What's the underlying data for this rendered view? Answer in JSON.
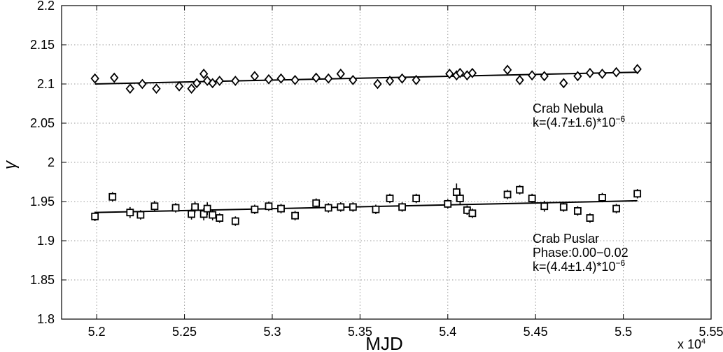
{
  "chart_data": {
    "type": "scatter",
    "xlabel": "MJD",
    "ylabel": "γ",
    "x_multiplier_label": "x 10",
    "x_multiplier_exp": "4",
    "xlim": [
      5.18,
      5.55
    ],
    "ylim": [
      1.8,
      2.2
    ],
    "x_ticks": [
      "5.2",
      "5.25",
      "5.3",
      "5.35",
      "5.4",
      "5.45",
      "5.5",
      "5.55"
    ],
    "y_ticks": [
      "1.8",
      "1.85",
      "1.9",
      "1.95",
      "2",
      "2.05",
      "2.1",
      "2.15",
      "2.2"
    ],
    "grid": true,
    "series": [
      {
        "name": "Crab Nebula",
        "marker": "diamond",
        "x": [
          5.199,
          5.21,
          5.219,
          5.226,
          5.234,
          5.247,
          5.254,
          5.257,
          5.261,
          5.263,
          5.266,
          5.27,
          5.279,
          5.29,
          5.298,
          5.305,
          5.313,
          5.325,
          5.332,
          5.339,
          5.346,
          5.36,
          5.367,
          5.374,
          5.382,
          5.401,
          5.405,
          5.407,
          5.411,
          5.414,
          5.434,
          5.441,
          5.448,
          5.455,
          5.466,
          5.474,
          5.481,
          5.488,
          5.496,
          5.508
        ],
        "y": [
          2.107,
          2.108,
          2.094,
          2.1,
          2.094,
          2.097,
          2.094,
          2.101,
          2.113,
          2.104,
          2.101,
          2.104,
          2.104,
          2.11,
          2.106,
          2.107,
          2.105,
          2.108,
          2.107,
          2.113,
          2.105,
          2.1,
          2.104,
          2.107,
          2.105,
          2.113,
          2.111,
          2.114,
          2.111,
          2.114,
          2.118,
          2.105,
          2.111,
          2.11,
          2.101,
          2.11,
          2.114,
          2.113,
          2.115,
          2.119
        ],
        "err": [
          0.004,
          0.004,
          0.004,
          0.004,
          0.004,
          0.004,
          0.004,
          0.004,
          0.005,
          0.004,
          0.004,
          0.004,
          0.004,
          0.004,
          0.004,
          0.004,
          0.004,
          0.004,
          0.004,
          0.004,
          0.004,
          0.004,
          0.004,
          0.004,
          0.004,
          0.004,
          0.004,
          0.004,
          0.004,
          0.004,
          0.004,
          0.004,
          0.004,
          0.004,
          0.004,
          0.004,
          0.004,
          0.004,
          0.004,
          0.004
        ],
        "fit": {
          "x": [
            5.199,
            5.508
          ],
          "y": [
            2.1,
            2.115
          ]
        },
        "annotation": {
          "lines": [
            "Crab Nebula",
            "k=(4.7±1.6)*10"
          ],
          "exponent": "−6"
        }
      },
      {
        "name": "Crab Puslar",
        "marker": "square",
        "x": [
          5.199,
          5.209,
          5.219,
          5.225,
          5.233,
          5.245,
          5.254,
          5.256,
          5.261,
          5.263,
          5.266,
          5.27,
          5.279,
          5.29,
          5.298,
          5.305,
          5.313,
          5.325,
          5.332,
          5.339,
          5.346,
          5.359,
          5.367,
          5.374,
          5.382,
          5.4,
          5.405,
          5.407,
          5.411,
          5.414,
          5.434,
          5.441,
          5.448,
          5.455,
          5.466,
          5.474,
          5.481,
          5.488,
          5.496,
          5.508
        ],
        "y": [
          1.931,
          1.956,
          1.936,
          1.933,
          1.944,
          1.942,
          1.934,
          1.943,
          1.934,
          1.941,
          1.933,
          1.929,
          1.925,
          1.94,
          1.944,
          1.941,
          1.932,
          1.948,
          1.942,
          1.943,
          1.943,
          1.94,
          1.954,
          1.943,
          1.954,
          1.947,
          1.962,
          1.954,
          1.939,
          1.935,
          1.959,
          1.965,
          1.954,
          1.944,
          1.943,
          1.938,
          1.929,
          1.955,
          1.941,
          1.96
        ],
        "err": [
          0.006,
          0.006,
          0.007,
          0.006,
          0.007,
          0.006,
          0.007,
          0.007,
          0.008,
          0.008,
          0.007,
          0.006,
          0.006,
          0.006,
          0.006,
          0.006,
          0.006,
          0.006,
          0.006,
          0.006,
          0.006,
          0.006,
          0.006,
          0.006,
          0.006,
          0.006,
          0.011,
          0.008,
          0.006,
          0.006,
          0.006,
          0.006,
          0.006,
          0.007,
          0.006,
          0.006,
          0.006,
          0.006,
          0.006,
          0.006
        ],
        "fit": {
          "x": [
            5.199,
            5.508
          ],
          "y": [
            1.936,
            1.951
          ]
        },
        "annotation": {
          "lines": [
            "Crab Puslar",
            "Phase:0.00−0.02",
            "k=(4.4±1.4)*10"
          ],
          "exponent": "−6"
        }
      }
    ]
  }
}
